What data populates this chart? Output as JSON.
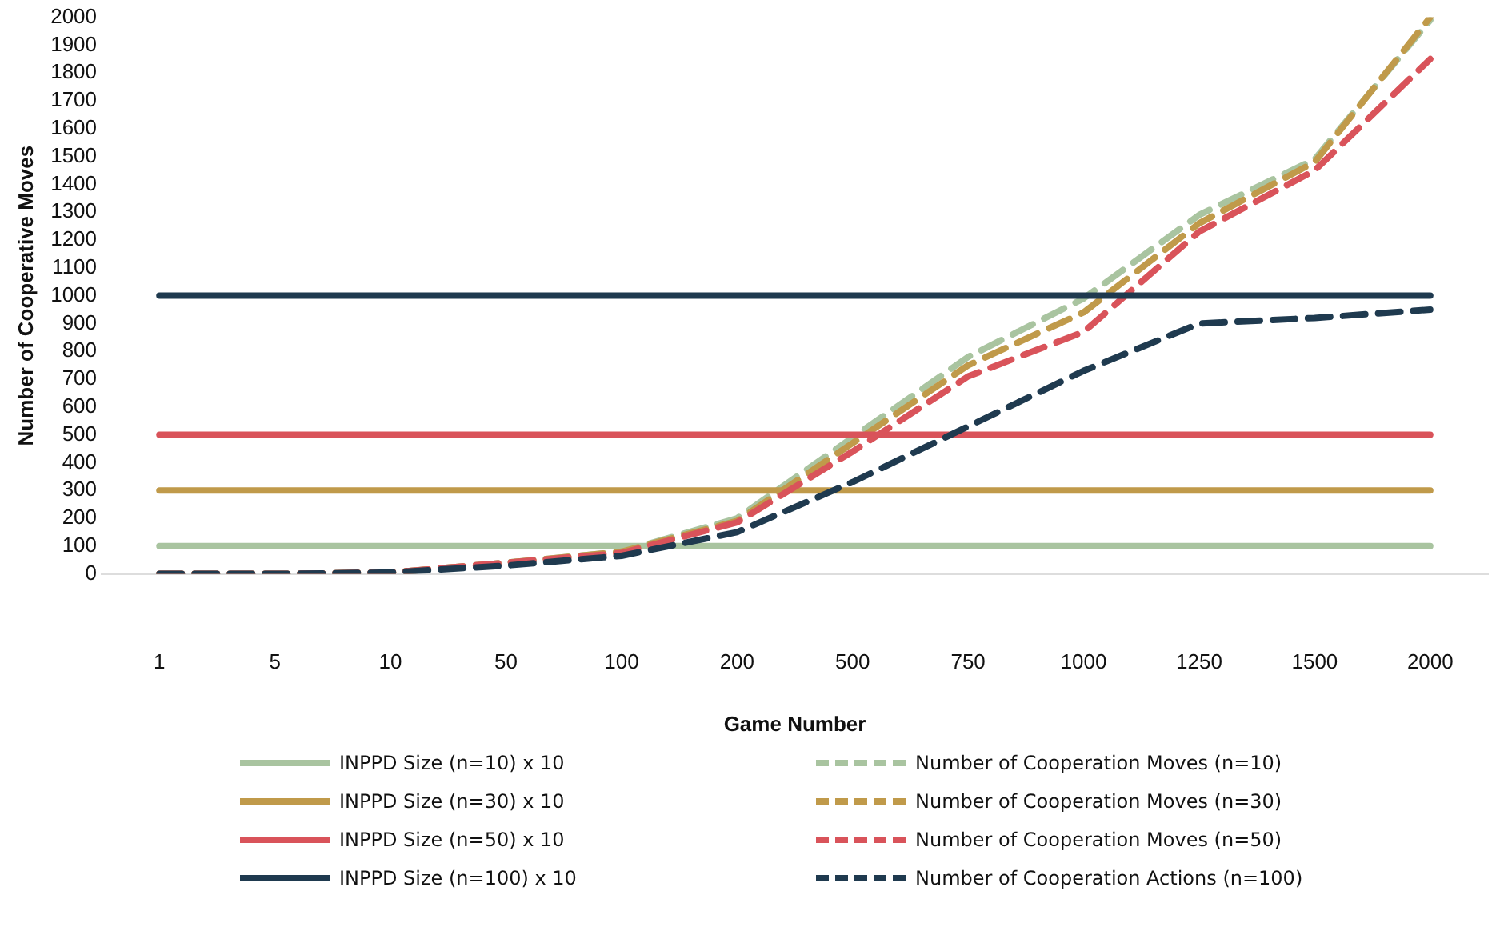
{
  "chart_data": {
    "type": "line",
    "xlabel": "Game Number",
    "ylabel": "Number of Cooperative Moves",
    "categories": [
      "1",
      "5",
      "10",
      "50",
      "100",
      "200",
      "500",
      "750",
      "1000",
      "1250",
      "1500",
      "2000"
    ],
    "ylim": [
      0,
      2000
    ],
    "yticks": [
      0,
      100,
      200,
      300,
      400,
      500,
      600,
      700,
      800,
      900,
      1000,
      1100,
      1200,
      1300,
      1400,
      1500,
      1600,
      1700,
      1800,
      1900,
      2000
    ],
    "grid": false,
    "legend": "bottom",
    "marker": "none",
    "series": [
      {
        "name": "INPPD Size (n=10) x 10",
        "color": "#a9c4a0",
        "line_style": "solid",
        "values": [
          100,
          100,
          100,
          100,
          100,
          100,
          100,
          100,
          100,
          100,
          100,
          100
        ]
      },
      {
        "name": "Number of Cooperation Moves (n=10)",
        "color": "#a9c4a0",
        "line_style": "dashed",
        "values": [
          0,
          0,
          5,
          40,
          80,
          200,
          490,
          780,
          990,
          1290,
          1490,
          1990
        ]
      },
      {
        "name": "INPPD Size (n=30) x 10",
        "color": "#c09a4a",
        "line_style": "solid",
        "values": [
          300,
          300,
          300,
          300,
          300,
          300,
          300,
          300,
          300,
          300,
          300,
          300
        ]
      },
      {
        "name": "Number of Cooperation Moves (n=30)",
        "color": "#c09a4a",
        "line_style": "dashed",
        "values": [
          0,
          0,
          5,
          40,
          80,
          190,
          470,
          750,
          940,
          1260,
          1480,
          2000
        ]
      },
      {
        "name": "INPPD Size (n=50) x 10",
        "color": "#d9535a",
        "line_style": "solid",
        "values": [
          500,
          500,
          500,
          500,
          500,
          500,
          500,
          500,
          500,
          500,
          500,
          500
        ]
      },
      {
        "name": "Number of Cooperation Moves (n=50)",
        "color": "#d9535a",
        "line_style": "dashed",
        "values": [
          0,
          0,
          5,
          40,
          75,
          185,
          440,
          710,
          870,
          1230,
          1450,
          1850
        ]
      },
      {
        "name": "INPPD Size (n=100) x 10",
        "color": "#1f3a4f",
        "line_style": "solid",
        "values": [
          1000,
          1000,
          1000,
          1000,
          1000,
          1000,
          1000,
          1000,
          1000,
          1000,
          1000,
          1000
        ]
      },
      {
        "name": "Number of Cooperation Actions (n=100)",
        "color": "#1f3a4f",
        "line_style": "dashed",
        "values": [
          0,
          0,
          5,
          30,
          65,
          150,
          330,
          530,
          730,
          900,
          920,
          950
        ]
      }
    ]
  }
}
